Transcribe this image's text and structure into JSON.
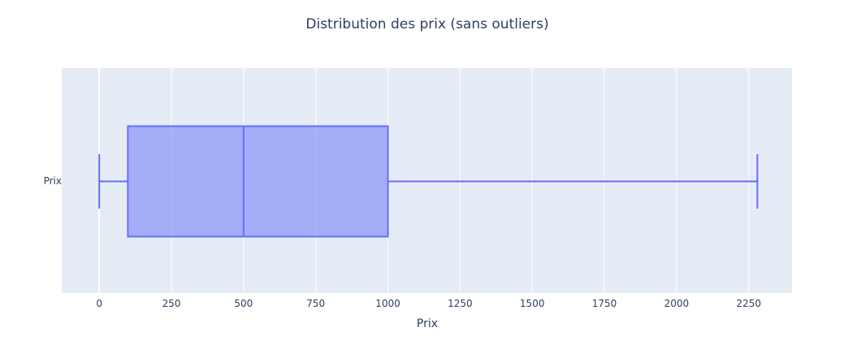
{
  "chart_data": {
    "type": "box",
    "title": "Distribution des prix (sans outliers)",
    "xlabel": "Prix",
    "ylabel": "",
    "orientation": "horizontal",
    "xlim": [
      -130,
      2400
    ],
    "x_ticks": [
      0,
      250,
      500,
      750,
      1000,
      1250,
      1500,
      1750,
      2000,
      2250
    ],
    "grid": true,
    "series": [
      {
        "name": "Prix",
        "min": 0,
        "q1": 99,
        "median": 500,
        "q3": 1000,
        "max": 2280
      }
    ],
    "colors": {
      "plot_bg": "#E5ECF6",
      "grid": "#ffffff",
      "box_line": "#636EFA",
      "box_fill": "rgba(99,110,250,0.5)",
      "text": "#2a3f5f"
    }
  }
}
